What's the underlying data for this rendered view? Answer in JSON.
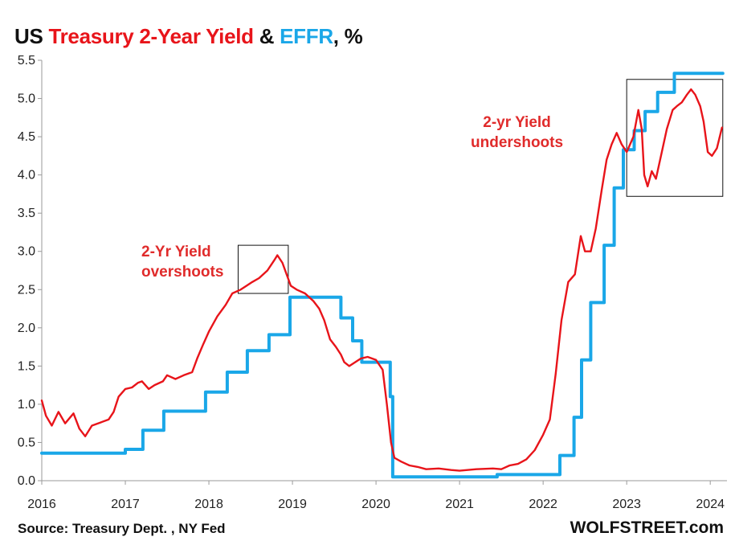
{
  "header": {
    "title_part1": "US ",
    "title_part2": "Treasury 2-Year Yield",
    "title_part3": " & ",
    "title_part4": "EFFR",
    "title_part5": ", %"
  },
  "footer": {
    "source": "Source: Treasury Dept. , NY Fed",
    "brand": "WOLFSTREET.com"
  },
  "annotations": {
    "overshoot_line1": "2-Yr Yield",
    "overshoot_line2": "overshoots",
    "undershoot_line1": "2-yr Yield",
    "undershoot_line2": "undershoots"
  },
  "colors": {
    "treasury_2yr": "#e8141a",
    "effr": "#1aa7e8"
  },
  "chart_data": {
    "type": "line",
    "title": "US Treasury 2-Year Yield & EFFR, %",
    "xlabel": "",
    "ylabel": "",
    "xlim": [
      2016,
      2024.2
    ],
    "ylim": [
      0,
      5.5
    ],
    "x_ticks": [
      "2016",
      "2017",
      "2018",
      "2019",
      "2020",
      "2021",
      "2022",
      "2023",
      "2024"
    ],
    "y_ticks": [
      "0.0",
      "0.5",
      "1.0",
      "1.5",
      "2.0",
      "2.5",
      "3.0",
      "3.5",
      "4.0",
      "4.5",
      "5.0",
      "5.5"
    ],
    "grid": false,
    "series": [
      {
        "name": "Treasury 2-Year Yield",
        "color": "#e8141a",
        "points": [
          [
            2016.0,
            1.05
          ],
          [
            2016.05,
            0.85
          ],
          [
            2016.12,
            0.72
          ],
          [
            2016.2,
            0.9
          ],
          [
            2016.28,
            0.75
          ],
          [
            2016.38,
            0.88
          ],
          [
            2016.45,
            0.68
          ],
          [
            2016.52,
            0.58
          ],
          [
            2016.6,
            0.72
          ],
          [
            2016.7,
            0.76
          ],
          [
            2016.8,
            0.8
          ],
          [
            2016.86,
            0.9
          ],
          [
            2016.92,
            1.1
          ],
          [
            2017.0,
            1.2
          ],
          [
            2017.08,
            1.22
          ],
          [
            2017.15,
            1.28
          ],
          [
            2017.2,
            1.3
          ],
          [
            2017.28,
            1.2
          ],
          [
            2017.35,
            1.25
          ],
          [
            2017.45,
            1.3
          ],
          [
            2017.5,
            1.38
          ],
          [
            2017.6,
            1.33
          ],
          [
            2017.7,
            1.38
          ],
          [
            2017.8,
            1.42
          ],
          [
            2017.86,
            1.6
          ],
          [
            2017.93,
            1.78
          ],
          [
            2018.0,
            1.95
          ],
          [
            2018.1,
            2.15
          ],
          [
            2018.2,
            2.3
          ],
          [
            2018.28,
            2.45
          ],
          [
            2018.38,
            2.5
          ],
          [
            2018.45,
            2.55
          ],
          [
            2018.52,
            2.6
          ],
          [
            2018.6,
            2.65
          ],
          [
            2018.7,
            2.75
          ],
          [
            2018.78,
            2.88
          ],
          [
            2018.82,
            2.95
          ],
          [
            2018.88,
            2.85
          ],
          [
            2018.93,
            2.7
          ],
          [
            2018.98,
            2.55
          ],
          [
            2019.05,
            2.5
          ],
          [
            2019.15,
            2.45
          ],
          [
            2019.25,
            2.35
          ],
          [
            2019.32,
            2.25
          ],
          [
            2019.38,
            2.1
          ],
          [
            2019.45,
            1.85
          ],
          [
            2019.52,
            1.75
          ],
          [
            2019.58,
            1.65
          ],
          [
            2019.62,
            1.55
          ],
          [
            2019.68,
            1.5
          ],
          [
            2019.75,
            1.55
          ],
          [
            2019.82,
            1.6
          ],
          [
            2019.9,
            1.62
          ],
          [
            2020.0,
            1.58
          ],
          [
            2020.08,
            1.45
          ],
          [
            2020.13,
            1.0
          ],
          [
            2020.18,
            0.5
          ],
          [
            2020.22,
            0.3
          ],
          [
            2020.3,
            0.25
          ],
          [
            2020.4,
            0.2
          ],
          [
            2020.5,
            0.18
          ],
          [
            2020.6,
            0.15
          ],
          [
            2020.75,
            0.16
          ],
          [
            2020.9,
            0.14
          ],
          [
            2021.0,
            0.13
          ],
          [
            2021.2,
            0.15
          ],
          [
            2021.4,
            0.16
          ],
          [
            2021.5,
            0.15
          ],
          [
            2021.6,
            0.2
          ],
          [
            2021.7,
            0.22
          ],
          [
            2021.8,
            0.28
          ],
          [
            2021.9,
            0.4
          ],
          [
            2022.0,
            0.6
          ],
          [
            2022.08,
            0.8
          ],
          [
            2022.15,
            1.4
          ],
          [
            2022.22,
            2.1
          ],
          [
            2022.3,
            2.6
          ],
          [
            2022.38,
            2.7
          ],
          [
            2022.45,
            3.2
          ],
          [
            2022.5,
            3.0
          ],
          [
            2022.57,
            3.0
          ],
          [
            2022.63,
            3.3
          ],
          [
            2022.7,
            3.8
          ],
          [
            2022.76,
            4.2
          ],
          [
            2022.82,
            4.4
          ],
          [
            2022.88,
            4.55
          ],
          [
            2022.94,
            4.4
          ],
          [
            2023.0,
            4.3
          ],
          [
            2023.08,
            4.5
          ],
          [
            2023.14,
            4.85
          ],
          [
            2023.18,
            4.6
          ],
          [
            2023.21,
            4.0
          ],
          [
            2023.25,
            3.85
          ],
          [
            2023.3,
            4.05
          ],
          [
            2023.35,
            3.95
          ],
          [
            2023.42,
            4.3
          ],
          [
            2023.48,
            4.6
          ],
          [
            2023.55,
            4.85
          ],
          [
            2023.6,
            4.9
          ],
          [
            2023.66,
            4.95
          ],
          [
            2023.72,
            5.05
          ],
          [
            2023.77,
            5.12
          ],
          [
            2023.82,
            5.05
          ],
          [
            2023.88,
            4.9
          ],
          [
            2023.92,
            4.7
          ],
          [
            2023.97,
            4.3
          ],
          [
            2024.02,
            4.25
          ],
          [
            2024.08,
            4.35
          ],
          [
            2024.14,
            4.62
          ]
        ]
      },
      {
        "name": "EFFR",
        "color": "#1aa7e8",
        "points": [
          [
            2016.0,
            0.36
          ],
          [
            2017.0,
            0.36
          ],
          [
            2017.0,
            0.41
          ],
          [
            2017.21,
            0.41
          ],
          [
            2017.21,
            0.66
          ],
          [
            2017.46,
            0.66
          ],
          [
            2017.46,
            0.91
          ],
          [
            2017.96,
            0.91
          ],
          [
            2017.96,
            1.16
          ],
          [
            2018.22,
            1.16
          ],
          [
            2018.22,
            1.42
          ],
          [
            2018.46,
            1.42
          ],
          [
            2018.46,
            1.7
          ],
          [
            2018.72,
            1.7
          ],
          [
            2018.72,
            1.91
          ],
          [
            2018.97,
            1.91
          ],
          [
            2018.97,
            2.4
          ],
          [
            2019.58,
            2.4
          ],
          [
            2019.58,
            2.13
          ],
          [
            2019.72,
            2.13
          ],
          [
            2019.72,
            1.83
          ],
          [
            2019.83,
            1.83
          ],
          [
            2019.83,
            1.55
          ],
          [
            2020.17,
            1.55
          ],
          [
            2020.17,
            1.1
          ],
          [
            2020.2,
            1.1
          ],
          [
            2020.2,
            0.05
          ],
          [
            2021.45,
            0.05
          ],
          [
            2021.45,
            0.08
          ],
          [
            2022.2,
            0.08
          ],
          [
            2022.2,
            0.33
          ],
          [
            2022.37,
            0.33
          ],
          [
            2022.37,
            0.83
          ],
          [
            2022.46,
            0.83
          ],
          [
            2022.46,
            1.58
          ],
          [
            2022.57,
            1.58
          ],
          [
            2022.57,
            2.33
          ],
          [
            2022.73,
            2.33
          ],
          [
            2022.73,
            3.08
          ],
          [
            2022.85,
            3.08
          ],
          [
            2022.85,
            3.83
          ],
          [
            2022.96,
            3.83
          ],
          [
            2022.96,
            4.33
          ],
          [
            2023.09,
            4.33
          ],
          [
            2023.09,
            4.58
          ],
          [
            2023.22,
            4.58
          ],
          [
            2023.22,
            4.83
          ],
          [
            2023.37,
            4.83
          ],
          [
            2023.37,
            5.08
          ],
          [
            2023.57,
            5.08
          ],
          [
            2023.57,
            5.33
          ],
          [
            2024.15,
            5.33
          ]
        ]
      }
    ],
    "highlight_boxes": [
      {
        "x": [
          2018.35,
          2018.95
        ],
        "y": [
          2.45,
          3.08
        ]
      },
      {
        "x": [
          2023.0,
          2024.15
        ],
        "y": [
          3.72,
          5.25
        ]
      }
    ]
  }
}
